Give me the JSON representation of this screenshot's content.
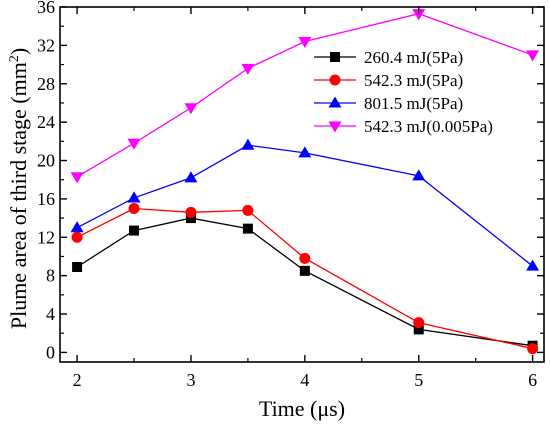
{
  "chart_data": {
    "type": "line",
    "xlabel": "Time (μs)",
    "ylabel": "Plume area of third stage (mm",
    "ylabel_sup": "2",
    "ylabel_close": ")",
    "xlim": [
      1.85,
      6.1
    ],
    "ylim": [
      -1,
      36
    ],
    "xticks": [
      "2",
      "3",
      "4",
      "5",
      "6"
    ],
    "yticks": [
      "0",
      "4",
      "8",
      "12",
      "16",
      "20",
      "24",
      "28",
      "32",
      "36"
    ],
    "legend_position": "top-right",
    "series": [
      {
        "name": "260.4 mJ(5Pa)",
        "color": "#000000",
        "marker": "square",
        "x": [
          2,
          2.5,
          3,
          3.5,
          4,
          5,
          6
        ],
        "y": [
          8.9,
          12.7,
          14.0,
          12.9,
          8.5,
          2.4,
          0.7
        ]
      },
      {
        "name": "542.3 mJ(5Pa)",
        "color": "#ff0000",
        "marker": "circle",
        "x": [
          2,
          2.5,
          3,
          3.5,
          4,
          5,
          6
        ],
        "y": [
          12.0,
          15.0,
          14.6,
          14.8,
          9.8,
          3.1,
          0.4
        ]
      },
      {
        "name": "801.5 mJ(5Pa)",
        "color": "#0000ff",
        "marker": "triangle-up",
        "x": [
          2,
          2.5,
          3,
          3.5,
          4,
          5,
          6
        ],
        "y": [
          13.0,
          16.1,
          18.2,
          21.6,
          20.8,
          18.4,
          9.0
        ]
      },
      {
        "name": "542.3 mJ(0.005Pa)",
        "color": "#ff00ff",
        "marker": "triangle-down",
        "x": [
          2,
          2.5,
          3,
          3.5,
          4,
          5,
          6
        ],
        "y": [
          18.3,
          21.8,
          25.5,
          29.6,
          32.4,
          35.3,
          31.0
        ]
      }
    ]
  }
}
